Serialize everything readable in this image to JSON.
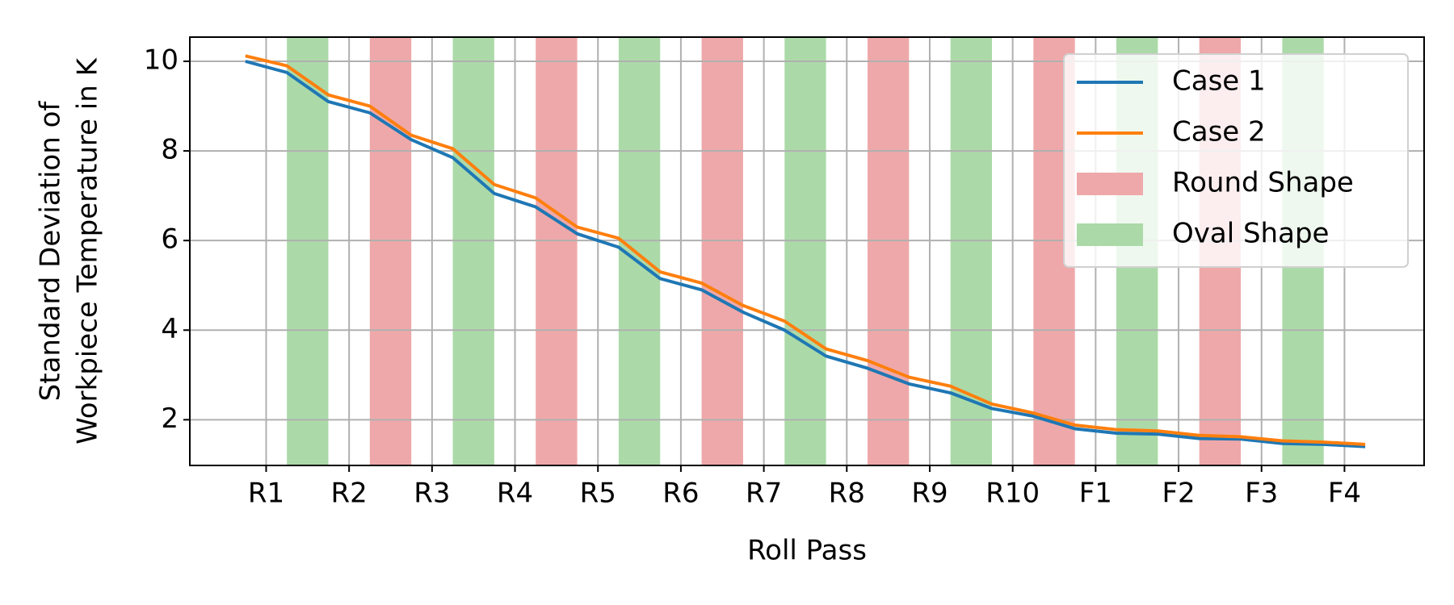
{
  "chart_data": {
    "type": "line",
    "xlabel": "Roll Pass",
    "ylabel": [
      "Standard Deviation of",
      "Workpiece Temperature in K"
    ],
    "x": [
      0.75,
      1.25,
      1.75,
      2.25,
      2.75,
      3.25,
      3.75,
      4.25,
      4.75,
      5.25,
      5.75,
      6.25,
      6.75,
      7.25,
      7.75,
      8.25,
      8.75,
      9.25,
      9.75,
      10.25,
      10.75,
      11.25,
      11.75,
      12.25,
      12.75,
      13.25,
      13.75,
      14.25
    ],
    "series": [
      {
        "name": "Case 1",
        "color": "#1f77b4",
        "values": [
          10.0,
          9.75,
          9.1,
          8.85,
          8.25,
          7.85,
          7.05,
          6.75,
          6.15,
          5.85,
          5.15,
          4.9,
          4.4,
          4.0,
          3.42,
          3.15,
          2.8,
          2.6,
          2.25,
          2.08,
          1.8,
          1.7,
          1.68,
          1.58,
          1.57,
          1.47,
          1.45,
          1.4
        ]
      },
      {
        "name": "Case 2",
        "color": "#ff7f0e",
        "values": [
          10.12,
          9.9,
          9.25,
          9.0,
          8.35,
          8.05,
          7.25,
          6.95,
          6.3,
          6.05,
          5.3,
          5.05,
          4.55,
          4.2,
          3.58,
          3.32,
          2.95,
          2.75,
          2.35,
          2.15,
          1.88,
          1.78,
          1.75,
          1.65,
          1.62,
          1.53,
          1.5,
          1.45
        ]
      }
    ],
    "spans": [
      {
        "name": "Round Shape",
        "color": "#efa8a9",
        "ranges": [
          [
            2.25,
            2.75
          ],
          [
            4.25,
            4.75
          ],
          [
            6.25,
            6.75
          ],
          [
            8.25,
            8.75
          ],
          [
            10.25,
            10.75
          ],
          [
            12.25,
            12.75
          ]
        ]
      },
      {
        "name": "Oval Shape",
        "color": "#abdaa8",
        "ranges": [
          [
            1.25,
            1.75
          ],
          [
            3.25,
            3.75
          ],
          [
            5.25,
            5.75
          ],
          [
            7.25,
            7.75
          ],
          [
            9.25,
            9.75
          ],
          [
            11.25,
            11.75
          ],
          [
            13.25,
            13.75
          ]
        ]
      }
    ],
    "xlim": [
      0.08,
      14.96
    ],
    "ylim": [
      0.98,
      10.54
    ],
    "xticks": [
      {
        "value": 1,
        "label": "R1"
      },
      {
        "value": 2,
        "label": "R2"
      },
      {
        "value": 3,
        "label": "R3"
      },
      {
        "value": 4,
        "label": "R4"
      },
      {
        "value": 5,
        "label": "R5"
      },
      {
        "value": 6,
        "label": "R6"
      },
      {
        "value": 7,
        "label": "R7"
      },
      {
        "value": 8,
        "label": "R8"
      },
      {
        "value": 9,
        "label": "R9"
      },
      {
        "value": 10,
        "label": "R10"
      },
      {
        "value": 11,
        "label": "F1"
      },
      {
        "value": 12,
        "label": "F2"
      },
      {
        "value": 13,
        "label": "F3"
      },
      {
        "value": 14,
        "label": "F4"
      }
    ],
    "yticks": [
      2,
      4,
      6,
      8,
      10
    ],
    "grid": true,
    "legend": "upper right"
  }
}
